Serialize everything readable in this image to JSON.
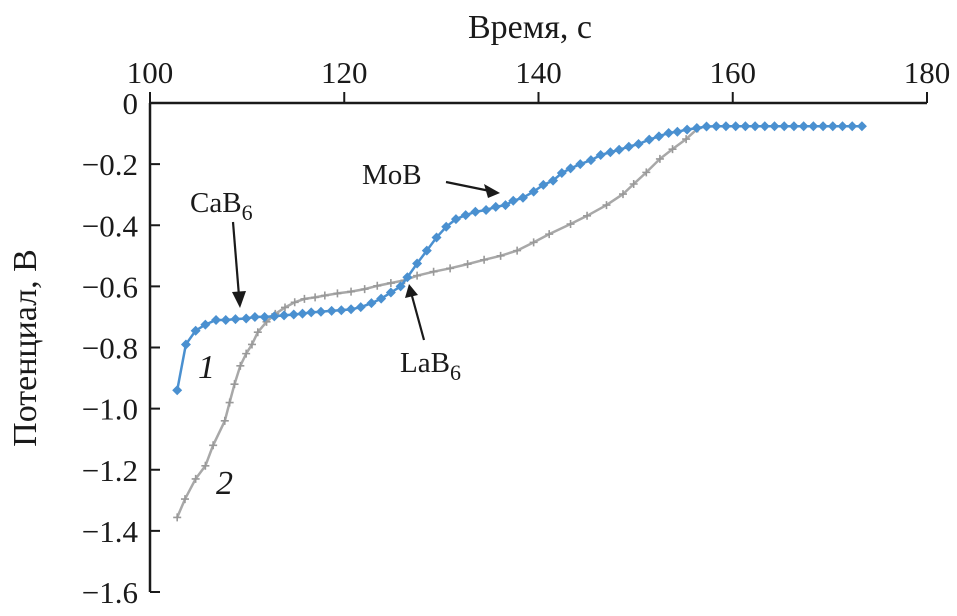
{
  "chart_data": {
    "type": "line",
    "xlabel": "Время, с",
    "ylabel": "Потенциал, В",
    "xlim": [
      100,
      180
    ],
    "ylim": [
      -1.6,
      0
    ],
    "x_axis_position": "top",
    "grid": false,
    "x_ticks": [
      "100",
      "120",
      "140",
      "160",
      "180"
    ],
    "y_ticks": [
      "0",
      "−0.2",
      "−0.4",
      "−0.6",
      "−0.8",
      "−1.0",
      "−1.2",
      "−1.4",
      "−1.6"
    ],
    "series": [
      {
        "name": "1",
        "color": "#4a90d0",
        "marker": "diamond",
        "x": [
          102.8,
          103.7,
          104.7,
          105.7,
          106.8,
          107.8,
          108.8,
          109.9,
          110.8,
          111.8,
          112.8,
          113.8,
          114.8,
          115.7,
          116.6,
          117.6,
          118.7,
          119.7,
          120.7,
          121.7,
          122.8,
          123.8,
          124.8,
          125.8,
          126.5,
          127.5,
          128.5,
          129.5,
          130.5,
          131.5,
          132.5,
          133.5,
          134.6,
          135.6,
          136.6,
          137.4,
          138.4,
          139.5,
          140.5,
          141.5,
          142.4,
          143.3,
          144.3,
          145.4,
          146.4,
          147.4,
          148.3,
          149.3,
          150.3,
          151.4,
          152.4,
          153.4,
          154.3,
          155.3,
          156.3,
          157.3,
          158.3,
          159.3,
          160.3,
          161.3,
          162.3,
          163.3,
          164.3,
          165.3,
          166.3,
          167.3,
          168.3,
          169.3,
          170.3,
          171.3,
          172.3,
          173.3
        ],
        "y": [
          -0.94,
          -0.79,
          -0.745,
          -0.725,
          -0.71,
          -0.71,
          -0.707,
          -0.705,
          -0.7,
          -0.7,
          -0.698,
          -0.695,
          -0.692,
          -0.689,
          -0.685,
          -0.683,
          -0.68,
          -0.678,
          -0.675,
          -0.668,
          -0.655,
          -0.64,
          -0.62,
          -0.6,
          -0.57,
          -0.525,
          -0.483,
          -0.44,
          -0.405,
          -0.38,
          -0.367,
          -0.356,
          -0.35,
          -0.34,
          -0.334,
          -0.32,
          -0.31,
          -0.29,
          -0.268,
          -0.254,
          -0.229,
          -0.214,
          -0.2,
          -0.187,
          -0.17,
          -0.161,
          -0.153,
          -0.143,
          -0.134,
          -0.12,
          -0.109,
          -0.098,
          -0.094,
          -0.087,
          -0.082,
          -0.077,
          -0.076,
          -0.076,
          -0.076,
          -0.076,
          -0.076,
          -0.076,
          -0.076,
          -0.076,
          -0.076,
          -0.076,
          -0.076,
          -0.076,
          -0.076,
          -0.076,
          -0.076,
          -0.076
        ]
      },
      {
        "name": "2",
        "color": "#a8a8a8",
        "marker": "plus",
        "x": [
          102.8,
          103.6,
          104.7,
          105.7,
          106.5,
          107.7,
          108.2,
          108.7,
          109.3,
          109.9,
          110.5,
          111.1,
          112.0,
          112.9,
          113.9,
          114.9,
          115.9,
          117.0,
          118.0,
          119.3,
          120.7,
          122.1,
          123.4,
          124.8,
          126.2,
          127.5,
          129.2,
          130.9,
          132.7,
          134.4,
          136.1,
          137.8,
          139.5,
          141.1,
          143.3,
          145.0,
          147.0,
          148.7,
          149.8,
          151.1,
          152.5,
          153.8,
          155.2,
          156.4
        ],
        "y": [
          -1.356,
          -1.296,
          -1.23,
          -1.187,
          -1.12,
          -1.04,
          -0.98,
          -0.92,
          -0.86,
          -0.82,
          -0.79,
          -0.75,
          -0.716,
          -0.69,
          -0.669,
          -0.652,
          -0.641,
          -0.636,
          -0.63,
          -0.623,
          -0.617,
          -0.609,
          -0.598,
          -0.589,
          -0.58,
          -0.565,
          -0.552,
          -0.541,
          -0.527,
          -0.513,
          -0.5,
          -0.483,
          -0.456,
          -0.429,
          -0.396,
          -0.369,
          -0.334,
          -0.298,
          -0.265,
          -0.227,
          -0.183,
          -0.151,
          -0.118,
          -0.083
        ]
      }
    ],
    "annotations": [
      {
        "id": "cab6",
        "text": "CaB",
        "sub": "6"
      },
      {
        "id": "mob",
        "text": "MoB",
        "sub": ""
      },
      {
        "id": "lab6",
        "text": "LaB",
        "sub": "6"
      }
    ],
    "curve_labels": [
      "1",
      "2"
    ]
  }
}
